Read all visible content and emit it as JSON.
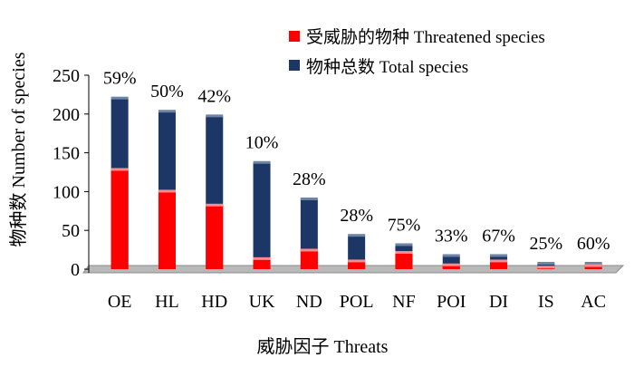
{
  "chart_data": {
    "type": "bar",
    "categories": [
      "OE",
      "HL",
      "HD",
      "UK",
      "ND",
      "POL",
      "NF",
      "POI",
      "DI",
      "IS",
      "AC"
    ],
    "series": [
      {
        "name": "受威胁的物种 Threatened species",
        "color": "#ff0000",
        "values": [
          128,
          100,
          82,
          13,
          24,
          10,
          21,
          5,
          10,
          2,
          4
        ]
      },
      {
        "name": "物种总数 Total species",
        "color": "#1c3766",
        "values": [
          220,
          203,
          197,
          137,
          90,
          43,
          31,
          17,
          17,
          7,
          7
        ]
      }
    ],
    "percentages": [
      "59%",
      "50%",
      "42%",
      "10%",
      "28%",
      "28%",
      "75%",
      "33%",
      "67%",
      "25%",
      "60%"
    ],
    "xlabel": "威胁因子 Threats",
    "ylabel": "物种数 Number of species",
    "ylim": [
      0,
      250
    ],
    "yticks": [
      0,
      50,
      100,
      150,
      200,
      250
    ],
    "grid": false,
    "legend_position": "top-right",
    "bar_layout": "overlapping (threatened bar drawn in front of total bar)"
  }
}
